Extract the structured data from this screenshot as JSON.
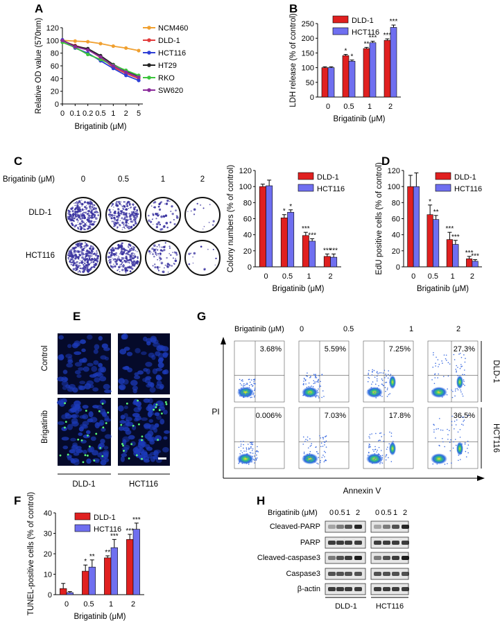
{
  "colors": {
    "ncm460": "#f0a030",
    "dld1": "#e23b3b",
    "hct116": "#2f3fd6",
    "ht29": "#222222",
    "rko": "#3cc43c",
    "sw620": "#8a2a9a",
    "bar_red": "#e02020",
    "bar_blue": "#6f6ff0"
  },
  "chart_data": [
    {
      "panel": "A",
      "type": "line",
      "ylabel": "Relative OD value (570nm)",
      "xlabel": "Brigatinib (μM)",
      "categories": [
        "0",
        "0.1",
        "0.2",
        "0.5",
        "1",
        "2",
        "5"
      ],
      "ylim": [
        0,
        120
      ],
      "yticks": [
        "0",
        "20",
        "40",
        "60",
        "80",
        "100",
        "120"
      ],
      "series": [
        {
          "name": "NCM460",
          "color_key": "ncm460",
          "values": [
            100,
            99,
            98,
            95,
            91,
            88,
            84
          ]
        },
        {
          "name": "DLD-1",
          "color_key": "dld1",
          "values": [
            99,
            92,
            86,
            73,
            58,
            48,
            40
          ]
        },
        {
          "name": "HCT116",
          "color_key": "hct116",
          "values": [
            101,
            88,
            80,
            68,
            56,
            45,
            37
          ]
        },
        {
          "name": "HT29",
          "color_key": "ht29",
          "values": [
            100,
            91,
            87,
            76,
            62,
            52,
            44
          ]
        },
        {
          "name": "RKO",
          "color_key": "rko",
          "values": [
            97,
            89,
            78,
            70,
            61,
            53,
            45
          ]
        },
        {
          "name": "SW620",
          "color_key": "sw620",
          "values": [
            100,
            90,
            85,
            74,
            60,
            50,
            42
          ]
        }
      ]
    },
    {
      "panel": "B",
      "type": "bar",
      "ylabel": "LDH release (% of control)",
      "xlabel": "Brigatinib (μM)",
      "categories": [
        "0",
        "0.5",
        "1",
        "2"
      ],
      "ylim": [
        0,
        250
      ],
      "yticks": [
        "0",
        "50",
        "100",
        "150",
        "200",
        "250"
      ],
      "series": [
        {
          "name": "DLD-1",
          "color_key": "bar_red",
          "values": [
            100,
            141,
            165,
            193
          ],
          "errors": [
            3,
            4,
            4,
            5
          ],
          "sig": [
            "",
            "*",
            "**",
            "***"
          ]
        },
        {
          "name": "HCT116",
          "color_key": "bar_blue",
          "values": [
            100,
            122,
            185,
            237
          ],
          "errors": [
            3,
            4,
            5,
            8
          ],
          "sig": [
            "",
            "*",
            "***",
            "***"
          ]
        }
      ]
    },
    {
      "panel": "C",
      "type": "bar",
      "ylabel": "Colony numbers (% of control)",
      "xlabel": "Brigatinib (μM)",
      "categories": [
        "0",
        "0.5",
        "1",
        "2"
      ],
      "ylim": [
        0,
        120
      ],
      "yticks": [
        "0",
        "20",
        "40",
        "60",
        "80",
        "100",
        "120"
      ],
      "series": [
        {
          "name": "DLD-1",
          "color_key": "bar_red",
          "values": [
            100,
            61,
            39,
            13
          ],
          "errors": [
            3,
            4,
            4,
            3
          ],
          "sig": [
            "",
            "*",
            "***",
            "***"
          ]
        },
        {
          "name": "HCT116",
          "color_key": "bar_blue",
          "values": [
            101,
            68,
            32,
            12
          ],
          "errors": [
            7,
            3,
            3,
            4
          ],
          "sig": [
            "",
            "*",
            "***",
            "***"
          ]
        }
      ]
    },
    {
      "panel": "D",
      "type": "bar",
      "ylabel": "EdU positive cells (% of control)",
      "xlabel": "Brigatinib (μM)",
      "categories": [
        "0",
        "0.5",
        "1",
        "2"
      ],
      "ylim": [
        0,
        120
      ],
      "yticks": [
        "0",
        "20",
        "40",
        "60",
        "80",
        "100",
        "120"
      ],
      "series": [
        {
          "name": "DLD-1",
          "color_key": "bar_red",
          "values": [
            100,
            65,
            34,
            10
          ],
          "errors": [
            14,
            12,
            9,
            3
          ],
          "sig": [
            "",
            "*",
            "***",
            "***"
          ]
        },
        {
          "name": "HCT116",
          "color_key": "bar_blue",
          "values": [
            100,
            59,
            28,
            7
          ],
          "errors": [
            17,
            5,
            5,
            2
          ],
          "sig": [
            "",
            "**",
            "***",
            "***"
          ]
        }
      ]
    },
    {
      "panel": "F",
      "type": "bar",
      "ylabel": "TUNEL-positive cells (% of control)",
      "xlabel": "Brigatinib (μM)",
      "categories": [
        "0",
        "0.5",
        "1",
        "2"
      ],
      "ylim": [
        0,
        40
      ],
      "yticks": [
        "0",
        "10",
        "20",
        "30",
        "40"
      ],
      "series": [
        {
          "name": "DLD-1",
          "color_key": "bar_red",
          "values": [
            3,
            11.5,
            18,
            27
          ],
          "errors": [
            2.5,
            3,
            1,
            2.5
          ],
          "sig": [
            "",
            "*",
            "**",
            "***"
          ]
        },
        {
          "name": "HCT116",
          "color_key": "bar_blue",
          "values": [
            1,
            13.5,
            23,
            32
          ],
          "errors": [
            0.5,
            3.5,
            4,
            3
          ],
          "sig": [
            "",
            "**",
            "***",
            "***"
          ]
        }
      ]
    }
  ],
  "panels": {
    "A": "A",
    "B": "B",
    "C": "C",
    "D": "D",
    "E": "E",
    "F": "F",
    "G": "G",
    "H": "H"
  },
  "colony": {
    "dose_label": "Brigatinib (μM)",
    "doses": [
      "0",
      "0.5",
      "1",
      "2"
    ],
    "rows": [
      "DLD-1",
      "HCT116"
    ]
  },
  "tunel": {
    "rows": [
      "Control",
      "Brigatinib"
    ],
    "cols": [
      "DLD-1",
      "HCT116"
    ]
  },
  "flow": {
    "dose_label": "Brigatinib (μM)",
    "doses": [
      "0",
      "0.5",
      "1",
      "2"
    ],
    "rows": [
      "DLD-1",
      "HCT116"
    ],
    "percents": [
      [
        "3.68%",
        "5.59%",
        "7.25%",
        "27.3%"
      ],
      [
        "0.006%",
        "7.03%",
        "17.8%",
        "36.5%"
      ]
    ],
    "xlabel": "Annexin V",
    "ylabel": "PI"
  },
  "blot": {
    "dose_label": "Brigatinib (μM)",
    "doses": [
      "0",
      "0.5",
      "1",
      "2"
    ],
    "proteins": [
      "Cleaved-PARP",
      "PARP",
      "Cleaved-caspase3",
      "Caspase3",
      "β-actin"
    ],
    "groups": [
      "DLD-1",
      "HCT116"
    ]
  }
}
